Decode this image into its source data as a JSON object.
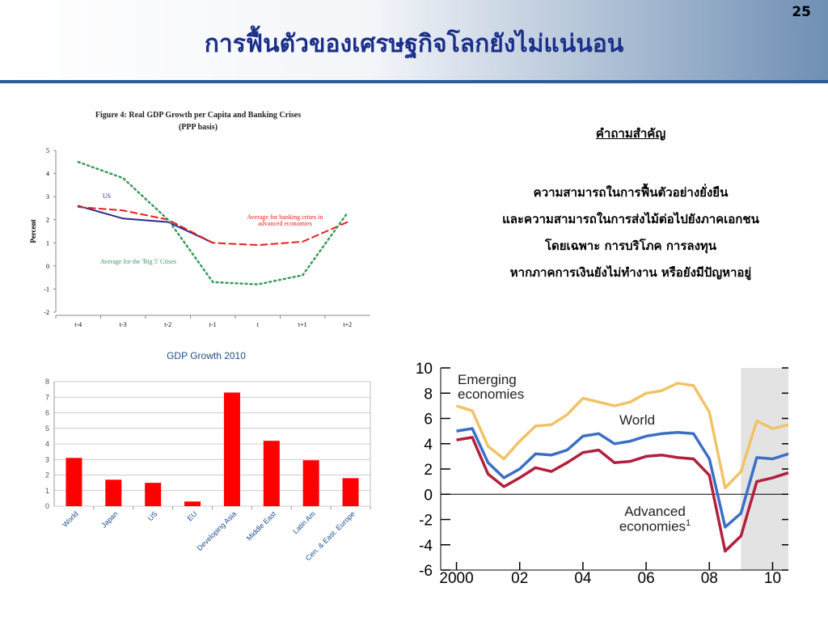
{
  "page_number": "25",
  "title": "การฟื้นตัวของเศรษฐกิจโลกยังไม่แน่นอน",
  "key_question": {
    "heading": "คำถามสำคัญ",
    "lines": [
      "ความสามารถในการฟื้นตัวอย่างยั่งยืน",
      "และความสามารถในการส่งไม้ต่อไปยังภาคเอกชน",
      "โดยเฉพาะ การบริโภค การลงทุน",
      "หากภาคการเงินยังไม่ทำงาน หรือยังมีปัญหาอยู่"
    ]
  },
  "chart_data": [
    {
      "type": "line",
      "title": "Figure 4:  Real GDP Growth per Capita and Banking Crises",
      "subtitle": "(PPP basis)",
      "ylabel": "Percent",
      "categories": [
        "t-4",
        "t-3",
        "t-2",
        "t-1",
        "t",
        "t+1",
        "t+2"
      ],
      "ylim": [
        -2,
        5
      ],
      "yticks": [
        -2,
        -1,
        0,
        1,
        2,
        3,
        4,
        5
      ],
      "series": [
        {
          "name": "US",
          "color": "#2b2b8c",
          "style": "solid",
          "values": [
            2.6,
            2.05,
            1.9,
            1.0,
            null,
            null,
            null
          ]
        },
        {
          "name": "Average for banking crises in advanced economies",
          "color": "#e8201c",
          "style": "dashed",
          "values": [
            2.55,
            2.4,
            2.0,
            1.0,
            0.9,
            1.05,
            1.9
          ]
        },
        {
          "name": "Average for the 'Big 5' Crises",
          "color": "#3a9a5a",
          "style": "dotted",
          "values": [
            4.5,
            3.8,
            2.0,
            -0.7,
            -0.8,
            -0.4,
            2.3
          ]
        }
      ]
    },
    {
      "type": "bar",
      "title": "GDP Growth 2010",
      "categories": [
        "World",
        "Japan",
        "US",
        "EU",
        "Developing Asia",
        "Middle East",
        "Latin Am",
        "Cen. & East. Europe"
      ],
      "values": [
        3.1,
        1.7,
        1.5,
        0.3,
        7.3,
        4.2,
        2.95,
        1.8
      ],
      "color": "#ff0000",
      "ylim": [
        0,
        8
      ],
      "yticks": [
        0,
        1,
        2,
        3,
        4,
        5,
        6,
        7,
        8
      ],
      "grid": true
    },
    {
      "type": "line",
      "x": [
        2000,
        2000.5,
        2001,
        2001.5,
        2002,
        2002.5,
        2003,
        2003.5,
        2004,
        2004.5,
        2005,
        2005.5,
        2006,
        2006.5,
        2007,
        2007.5,
        2008,
        2008.5,
        2009,
        2009.5,
        2010,
        2010.5
      ],
      "xlim": [
        1999.5,
        2010.5
      ],
      "xticks": [
        {
          "value": 2000,
          "label": "2000"
        },
        {
          "value": 2002,
          "label": "02"
        },
        {
          "value": 2004,
          "label": "04"
        },
        {
          "value": 2006,
          "label": "06"
        },
        {
          "value": 2008,
          "label": "08"
        },
        {
          "value": 2010,
          "label": "10"
        }
      ],
      "ylim": [
        -6,
        10
      ],
      "yticks": [
        -6,
        -4,
        -2,
        0,
        2,
        4,
        6,
        8,
        10
      ],
      "shaded_x": [
        2009,
        2010.5
      ],
      "series": [
        {
          "name": "Emerging economies",
          "color": "#f2c266",
          "values": [
            7.0,
            6.6,
            3.8,
            2.8,
            4.2,
            5.4,
            5.5,
            6.3,
            7.6,
            7.3,
            7.0,
            7.3,
            8.0,
            8.2,
            8.8,
            8.6,
            6.5,
            0.5,
            1.8,
            5.8,
            5.2,
            5.5
          ]
        },
        {
          "name": "World",
          "color": "#3b6fc6",
          "values": [
            5.0,
            5.2,
            2.5,
            1.3,
            2.0,
            3.2,
            3.1,
            3.5,
            4.6,
            4.8,
            4.0,
            4.2,
            4.6,
            4.8,
            4.9,
            4.8,
            2.8,
            -2.6,
            -1.5,
            2.9,
            2.8,
            3.2
          ]
        },
        {
          "name": "Advanced economies",
          "name_note": "1",
          "color": "#b3203c",
          "values": [
            4.3,
            4.5,
            1.6,
            0.6,
            1.3,
            2.1,
            1.8,
            2.5,
            3.3,
            3.5,
            2.5,
            2.6,
            3.0,
            3.1,
            2.9,
            2.8,
            1.5,
            -4.5,
            -3.3,
            1.0,
            1.3,
            1.7
          ]
        }
      ]
    }
  ]
}
